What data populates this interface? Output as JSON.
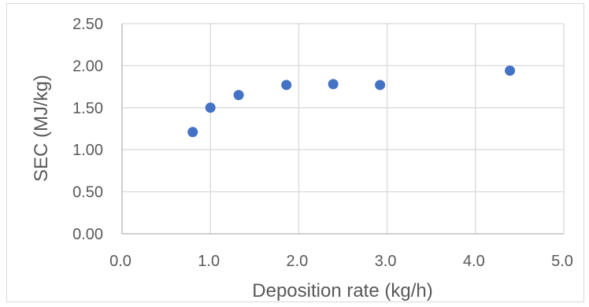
{
  "chart_data": {
    "type": "scatter",
    "title": "",
    "xlabel": "Deposition rate (kg/h)",
    "ylabel": "SEC (MJ/kg)",
    "xlim": [
      0,
      5
    ],
    "ylim": [
      0,
      2.5
    ],
    "x_ticks": [
      "0.0",
      "1.0",
      "2.0",
      "3.0",
      "4.0",
      "5.0"
    ],
    "y_ticks": [
      "0.00",
      "0.50",
      "1.00",
      "1.50",
      "2.00",
      "2.50"
    ],
    "grid": "vertical and horizontal major gridlines",
    "legend": "none",
    "marker_color": "#4472c4",
    "gridline_color": "#d9d9d9",
    "axis_line_color": "#bfbfbf",
    "text_color": "#595959",
    "series": [
      {
        "points": [
          {
            "x": 0.8,
            "y": 1.21
          },
          {
            "x": 1.0,
            "y": 1.5
          },
          {
            "x": 1.32,
            "y": 1.65
          },
          {
            "x": 1.86,
            "y": 1.77
          },
          {
            "x": 2.39,
            "y": 1.78
          },
          {
            "x": 2.92,
            "y": 1.77
          },
          {
            "x": 4.39,
            "y": 1.94
          }
        ]
      }
    ]
  }
}
